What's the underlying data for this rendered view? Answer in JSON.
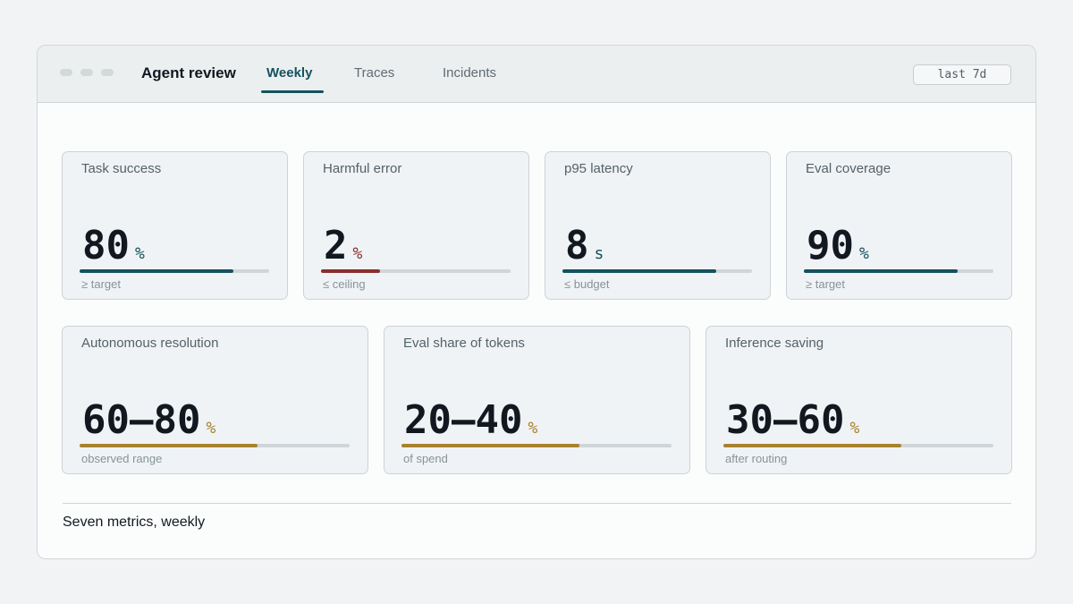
{
  "header": {
    "title": "Agent review",
    "tabs": [
      {
        "label": "Weekly",
        "active": true
      },
      {
        "label": "Traces",
        "active": false
      },
      {
        "label": "Incidents",
        "active": false
      }
    ],
    "range": "last 7d"
  },
  "colors": {
    "teal": "#14525e",
    "red": "#8a2e2e",
    "gold": "#a98230"
  },
  "metrics_row1": [
    {
      "label": "Task success",
      "value": "80",
      "unit": "%",
      "note": "≥ target",
      "fill_fraction": 0.81,
      "color": "#14525e",
      "unit_color": "#14525e"
    },
    {
      "label": "Harmful error",
      "value": "2",
      "unit": "%",
      "note": "≤ ceiling",
      "fill_fraction": 0.31,
      "color": "#8a2e2e",
      "unit_color": "#8a2e2e"
    },
    {
      "label": "p95 latency",
      "value": "8",
      "unit": "s",
      "note": "≤ budget",
      "fill_fraction": 0.81,
      "color": "#14525e",
      "unit_color": "#14525e"
    },
    {
      "label": "Eval coverage",
      "value": "90",
      "unit": "%",
      "note": "≥ target",
      "fill_fraction": 0.81,
      "color": "#14525e",
      "unit_color": "#14525e"
    }
  ],
  "metrics_row2": [
    {
      "label": "Autonomous resolution",
      "value": "60–80",
      "unit": "%",
      "note": "observed range",
      "fill_fraction": 0.66,
      "color": "#a98230",
      "unit_color": "#a98230"
    },
    {
      "label": "Eval share of tokens",
      "value": "20–40",
      "unit": "%",
      "note": "of spend",
      "fill_fraction": 0.66,
      "color": "#a98230",
      "unit_color": "#a98230"
    },
    {
      "label": "Inference saving",
      "value": "30–60",
      "unit": "%",
      "note": "after routing",
      "fill_fraction": 0.66,
      "color": "#a98230",
      "unit_color": "#a98230"
    }
  ],
  "footer": {
    "caption": "Seven metrics, weekly"
  }
}
